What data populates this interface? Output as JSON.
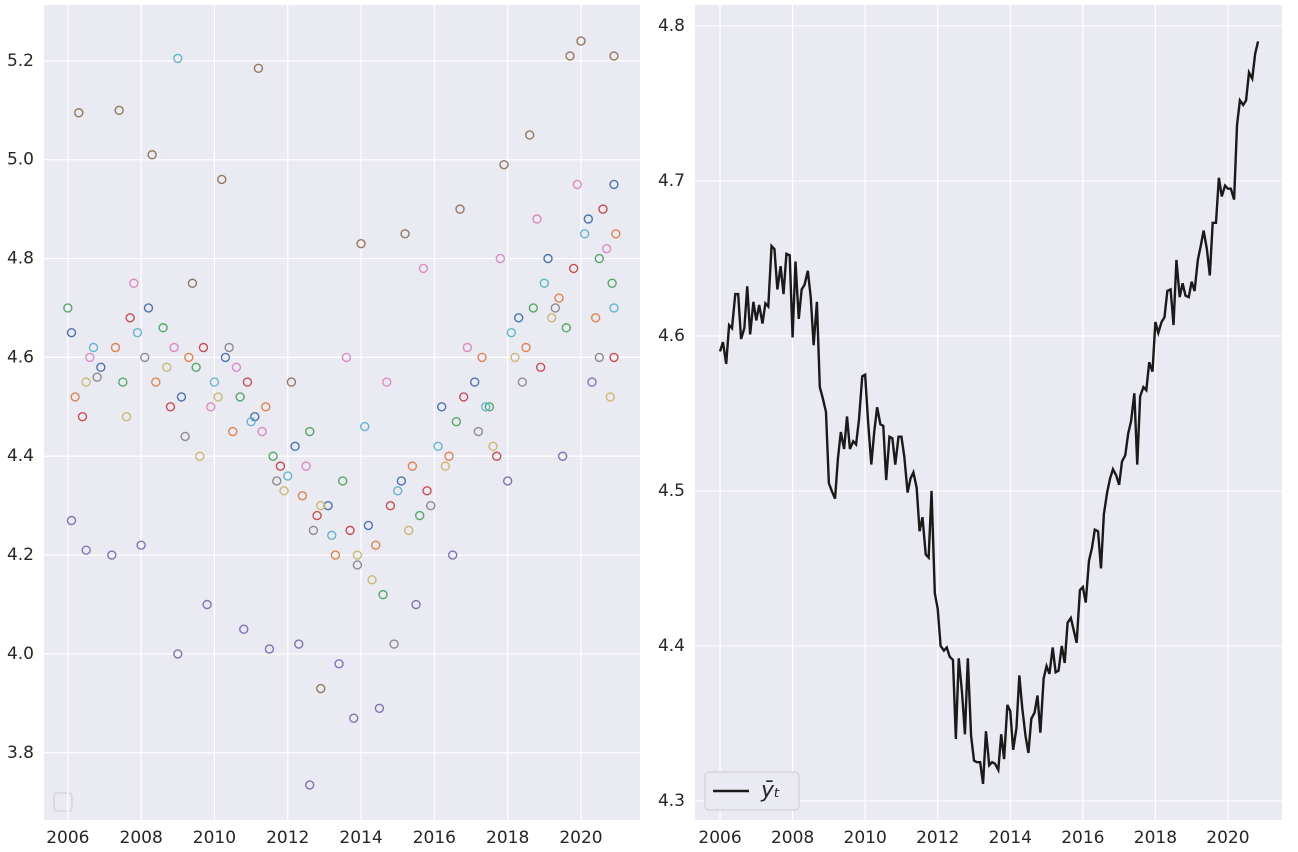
{
  "chart_data": [
    {
      "type": "scatter",
      "xlim": [
        2005.35,
        2021.61
      ],
      "ylim": [
        3.664,
        5.313
      ],
      "xticks": [
        2006,
        2008,
        2010,
        2012,
        2014,
        2016,
        2018,
        2020
      ],
      "yticks": [
        3.8,
        {
          "value": 4,
          "label": "4.0"
        },
        4.2,
        4.4,
        4.6,
        4.8,
        {
          "value": 5,
          "label": "5.0"
        },
        5.2
      ],
      "grid": true,
      "series": [
        {
          "color": "#4c72b0",
          "x": [
            2006.1,
            2006.9,
            2008.2,
            2009.1,
            2010.3,
            2011.1,
            2012.2,
            2013.1,
            2014.2,
            2015.1,
            2016.2,
            2017.1,
            2018.3,
            2019.1,
            2020.2,
            2020.9
          ],
          "values": [
            4.65,
            4.58,
            4.7,
            4.52,
            4.6,
            4.48,
            4.42,
            4.3,
            4.26,
            4.35,
            4.5,
            4.55,
            4.68,
            4.8,
            4.88,
            4.95
          ]
        },
        {
          "color": "#dd8452",
          "x": [
            2006.2,
            2007.3,
            2008.4,
            2009.3,
            2010.5,
            2011.4,
            2012.4,
            2013.3,
            2014.4,
            2015.4,
            2016.4,
            2017.3,
            2018.5,
            2019.4,
            2020.4,
            2020.95
          ],
          "values": [
            4.52,
            4.62,
            4.55,
            4.6,
            4.45,
            4.5,
            4.32,
            4.2,
            4.22,
            4.38,
            4.4,
            4.6,
            4.62,
            4.72,
            4.68,
            4.85
          ]
        },
        {
          "color": "#55a868",
          "x": [
            2006.0,
            2007.5,
            2008.6,
            2009.5,
            2010.7,
            2011.6,
            2012.6,
            2013.5,
            2014.6,
            2015.6,
            2016.6,
            2017.5,
            2018.7,
            2019.6,
            2020.5,
            2020.85
          ],
          "values": [
            4.7,
            4.55,
            4.66,
            4.58,
            4.52,
            4.4,
            4.45,
            4.35,
            4.12,
            4.28,
            4.47,
            4.5,
            4.7,
            4.66,
            4.8,
            4.75
          ]
        },
        {
          "color": "#c44e52",
          "x": [
            2006.4,
            2007.7,
            2008.8,
            2009.7,
            2010.9,
            2011.8,
            2012.8,
            2013.7,
            2014.8,
            2015.8,
            2016.8,
            2017.7,
            2018.9,
            2019.8,
            2020.6,
            2020.9
          ],
          "values": [
            4.48,
            4.68,
            4.5,
            4.62,
            4.55,
            4.38,
            4.28,
            4.25,
            4.3,
            4.33,
            4.52,
            4.4,
            4.58,
            4.78,
            4.9,
            4.6
          ]
        },
        {
          "color": "#8172b3",
          "x": [
            2006.1,
            2006.5,
            2007.2,
            2008.0,
            2009.0,
            2009.8,
            2010.8,
            2011.5,
            2012.3,
            2012.6,
            2013.4,
            2013.8,
            2014.5,
            2015.5,
            2016.5,
            2018.0,
            2019.5,
            2020.3
          ],
          "values": [
            4.27,
            4.21,
            4.2,
            4.22,
            4.0,
            4.1,
            4.05,
            4.01,
            4.02,
            3.735,
            3.98,
            3.87,
            3.89,
            4.1,
            4.2,
            4.35,
            4.4,
            4.55
          ]
        },
        {
          "color": "#937860",
          "x": [
            2006.3,
            2007.4,
            2008.3,
            2009.4,
            2010.2,
            2011.2,
            2012.1,
            2012.9,
            2014.0,
            2015.2,
            2016.7,
            2017.9,
            2018.6,
            2019.7,
            2020.0,
            2020.9
          ],
          "values": [
            5.095,
            5.1,
            5.01,
            4.75,
            4.96,
            5.185,
            4.55,
            3.93,
            4.83,
            4.85,
            4.9,
            4.99,
            5.05,
            5.21,
            5.24,
            5.21
          ]
        },
        {
          "color": "#da8bc3",
          "x": [
            2006.6,
            2007.8,
            2008.9,
            2009.9,
            2010.6,
            2011.3,
            2012.5,
            2013.6,
            2014.7,
            2015.7,
            2016.9,
            2017.8,
            2018.8,
            2019.9,
            2020.7
          ],
          "values": [
            4.6,
            4.75,
            4.62,
            4.5,
            4.58,
            4.45,
            4.38,
            4.6,
            4.55,
            4.78,
            4.62,
            4.8,
            4.88,
            4.95,
            4.82
          ]
        },
        {
          "color": "#8c8c8c",
          "x": [
            2006.8,
            2008.1,
            2009.2,
            2010.4,
            2011.7,
            2012.7,
            2013.9,
            2014.9,
            2015.9,
            2017.2,
            2018.4,
            2019.3,
            2020.5
          ],
          "values": [
            4.56,
            4.6,
            4.44,
            4.62,
            4.35,
            4.25,
            4.18,
            4.02,
            4.3,
            4.45,
            4.55,
            4.7,
            4.6
          ]
        },
        {
          "color": "#ccb974",
          "x": [
            2006.5,
            2007.6,
            2008.7,
            2009.6,
            2010.1,
            2011.9,
            2012.9,
            2013.9,
            2014.3,
            2015.3,
            2016.3,
            2017.6,
            2018.2,
            2019.2,
            2020.8
          ],
          "values": [
            4.55,
            4.48,
            4.58,
            4.4,
            4.52,
            4.33,
            4.3,
            4.2,
            4.15,
            4.25,
            4.38,
            4.42,
            4.6,
            4.68,
            4.52
          ]
        },
        {
          "color": "#64b5cd",
          "x": [
            2006.7,
            2007.9,
            2009.0,
            2010.0,
            2011.0,
            2012.0,
            2013.2,
            2014.1,
            2015.0,
            2016.1,
            2017.4,
            2018.1,
            2019.0,
            2020.1,
            2020.9
          ],
          "values": [
            4.62,
            4.65,
            5.205,
            4.55,
            4.47,
            4.36,
            4.24,
            4.46,
            4.33,
            4.42,
            4.5,
            4.65,
            4.75,
            4.85,
            4.7
          ]
        }
      ]
    },
    {
      "type": "line",
      "xlim": [
        2005.31,
        2021.49
      ],
      "ylim": [
        4.2877,
        4.8135
      ],
      "xticks": [
        2006,
        2008,
        2010,
        2012,
        2014,
        2016,
        2018,
        2020
      ],
      "yticks": [
        4.3,
        4.4,
        4.5,
        4.6,
        4.7,
        4.8
      ],
      "grid": true,
      "legend": "lower left",
      "x": [
        2006.0,
        2006.08,
        2006.17,
        2006.25,
        2006.33,
        2006.42,
        2006.5,
        2006.58,
        2006.67,
        2006.75,
        2006.83,
        2006.92,
        2007.0,
        2007.08,
        2007.17,
        2007.25,
        2007.33,
        2007.42,
        2007.5,
        2007.58,
        2007.67,
        2007.75,
        2007.83,
        2007.92,
        2008.0,
        2008.08,
        2008.17,
        2008.25,
        2008.33,
        2008.42,
        2008.5,
        2008.58,
        2008.67,
        2008.75,
        2008.83,
        2008.92,
        2009.0,
        2009.08,
        2009.17,
        2009.25,
        2009.33,
        2009.42,
        2009.5,
        2009.58,
        2009.67,
        2009.75,
        2009.83,
        2009.92,
        2010.0,
        2010.08,
        2010.17,
        2010.25,
        2010.33,
        2010.42,
        2010.5,
        2010.58,
        2010.67,
        2010.75,
        2010.83,
        2010.92,
        2011.0,
        2011.08,
        2011.17,
        2011.25,
        2011.33,
        2011.42,
        2011.5,
        2011.58,
        2011.67,
        2011.75,
        2011.83,
        2011.92,
        2012.0,
        2012.08,
        2012.17,
        2012.25,
        2012.33,
        2012.42,
        2012.5,
        2012.58,
        2012.67,
        2012.75,
        2012.83,
        2012.92,
        2013.0,
        2013.08,
        2013.17,
        2013.25,
        2013.33,
        2013.42,
        2013.5,
        2013.58,
        2013.67,
        2013.75,
        2013.83,
        2013.92,
        2014.0,
        2014.08,
        2014.17,
        2014.25,
        2014.33,
        2014.42,
        2014.5,
        2014.58,
        2014.67,
        2014.75,
        2014.83,
        2014.92,
        2015.0,
        2015.08,
        2015.17,
        2015.25,
        2015.33,
        2015.42,
        2015.5,
        2015.58,
        2015.67,
        2015.75,
        2015.83,
        2015.92,
        2016.0,
        2016.08,
        2016.17,
        2016.25,
        2016.33,
        2016.42,
        2016.5,
        2016.58,
        2016.67,
        2016.75,
        2016.83,
        2016.92,
        2017.0,
        2017.08,
        2017.17,
        2017.25,
        2017.33,
        2017.42,
        2017.5,
        2017.58,
        2017.67,
        2017.75,
        2017.83,
        2017.92,
        2018.0,
        2018.08,
        2018.17,
        2018.25,
        2018.33,
        2018.42,
        2018.5,
        2018.58,
        2018.67,
        2018.75,
        2018.83,
        2018.92,
        2019.0,
        2019.08,
        2019.17,
        2019.25,
        2019.33,
        2019.42,
        2019.5,
        2019.58,
        2019.67,
        2019.75,
        2019.83,
        2019.92,
        2020.0,
        2020.08,
        2020.17,
        2020.25,
        2020.33,
        2020.42,
        2020.5,
        2020.58,
        2020.67,
        2020.75,
        2020.83
      ],
      "series": [
        {
          "name": "ȳₜ",
          "color": "#1a1a1a",
          "values": [
            4.59,
            4.596,
            4.582,
            4.607,
            4.605,
            4.627,
            4.627,
            4.598,
            4.605,
            4.632,
            4.601,
            4.622,
            4.61,
            4.62,
            4.608,
            4.621,
            4.619,
            4.658,
            4.656,
            4.63,
            4.645,
            4.627,
            4.653,
            4.652,
            4.599,
            4.648,
            4.611,
            4.63,
            4.633,
            4.642,
            4.625,
            4.594,
            4.622,
            4.567,
            4.56,
            4.551,
            4.505,
            4.5,
            4.495,
            4.521,
            4.538,
            4.527,
            4.548,
            4.527,
            4.532,
            4.53,
            4.546,
            4.574,
            4.575,
            4.545,
            4.517,
            4.538,
            4.554,
            4.543,
            4.542,
            4.507,
            4.535,
            4.534,
            4.517,
            4.535,
            4.535,
            4.522,
            4.499,
            4.508,
            4.512,
            4.502,
            4.474,
            4.483,
            4.459,
            4.457,
            4.5,
            4.434,
            4.424,
            4.4,
            4.397,
            4.399,
            4.393,
            4.391,
            4.34,
            4.392,
            4.37,
            4.343,
            4.392,
            4.342,
            4.326,
            4.325,
            4.325,
            4.311,
            4.345,
            4.323,
            4.325,
            4.324,
            4.32,
            4.343,
            4.327,
            4.362,
            4.358,
            4.333,
            4.347,
            4.381,
            4.36,
            4.342,
            4.331,
            4.353,
            4.357,
            4.368,
            4.344,
            4.379,
            4.387,
            4.382,
            4.399,
            4.383,
            4.384,
            4.4,
            4.389,
            4.415,
            4.418,
            4.41,
            4.402,
            4.436,
            4.438,
            4.428,
            4.455,
            4.463,
            4.475,
            4.474,
            4.45,
            4.485,
            4.499,
            4.508,
            4.514,
            4.51,
            4.504,
            4.519,
            4.523,
            4.537,
            4.545,
            4.563,
            4.517,
            4.561,
            4.567,
            4.565,
            4.583,
            4.577,
            4.609,
            4.602,
            4.609,
            4.612,
            4.629,
            4.63,
            4.607,
            4.649,
            4.625,
            4.634,
            4.626,
            4.625,
            4.635,
            4.629,
            4.649,
            4.658,
            4.668,
            4.656,
            4.639,
            4.673,
            4.673,
            4.702,
            4.69,
            4.697,
            4.695,
            4.695,
            4.688,
            4.736,
            4.752,
            4.749,
            4.752,
            4.77,
            4.766,
            4.782,
            4.79
          ]
        }
      ]
    }
  ]
}
